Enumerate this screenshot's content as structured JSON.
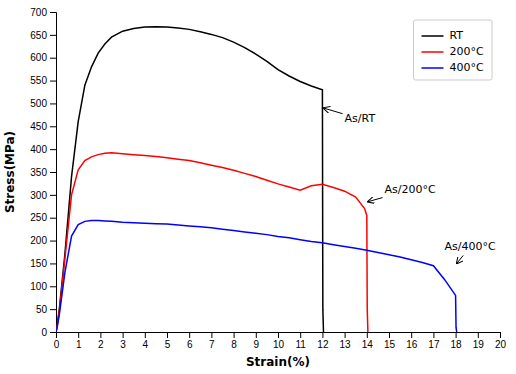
{
  "chart_data": {
    "type": "line",
    "xlabel": "Strain(%)",
    "ylabel": "Stress(MPa)",
    "xlim": [
      0,
      20
    ],
    "ylim": [
      0,
      700
    ],
    "xticks": [
      0,
      1,
      2,
      3,
      4,
      5,
      6,
      7,
      8,
      9,
      10,
      11,
      12,
      13,
      14,
      15,
      16,
      17,
      18,
      19,
      20
    ],
    "yticks": [
      0,
      50,
      100,
      150,
      200,
      250,
      300,
      350,
      400,
      450,
      500,
      550,
      600,
      650,
      700
    ],
    "legend": "upper right",
    "series": [
      {
        "name": "RT",
        "color": "black",
        "x": [
          0,
          0.05,
          0.15,
          0.4,
          0.7,
          1.0,
          1.3,
          1.6,
          1.9,
          2.2,
          2.5,
          3.0,
          3.5,
          4.0,
          4.5,
          5.0,
          5.5,
          6.0,
          6.5,
          7.0,
          7.5,
          8.0,
          8.5,
          9.0,
          9.5,
          10.0,
          10.5,
          11.0,
          11.5,
          12.0,
          12.02,
          12.05
        ],
        "values": [
          0,
          15,
          50,
          170,
          340,
          460,
          540,
          580,
          610,
          630,
          645,
          658,
          664,
          667,
          668,
          667,
          665,
          662,
          657,
          651,
          644,
          634,
          622,
          608,
          592,
          574,
          560,
          548,
          538,
          530,
          50,
          0
        ]
      },
      {
        "name": "200°C",
        "color": "red",
        "x": [
          0,
          0.05,
          0.15,
          0.4,
          0.7,
          1.0,
          1.3,
          1.6,
          1.9,
          2.2,
          2.5,
          3.0,
          3.5,
          4.0,
          4.5,
          5.0,
          5.5,
          6.0,
          6.5,
          7.0,
          7.5,
          8.0,
          8.5,
          9.0,
          9.5,
          10.0,
          10.5,
          11.0,
          11.5,
          12.0,
          12.5,
          13.0,
          13.5,
          13.9,
          14.0,
          14.02,
          14.05
        ],
        "values": [
          0,
          12,
          45,
          160,
          300,
          355,
          375,
          383,
          388,
          391,
          392,
          390,
          388,
          386,
          384,
          381,
          378,
          375,
          370,
          365,
          360,
          354,
          347,
          340,
          332,
          324,
          317,
          310,
          320,
          323,
          316,
          308,
          295,
          270,
          255,
          50,
          0
        ]
      },
      {
        "name": "400°C",
        "color": "blue",
        "x": [
          0,
          0.05,
          0.15,
          0.4,
          0.7,
          1.0,
          1.3,
          1.6,
          1.9,
          2.2,
          2.5,
          3.0,
          3.5,
          4.0,
          4.5,
          5.0,
          5.5,
          6.0,
          6.5,
          7.0,
          7.5,
          8.0,
          8.5,
          9.0,
          9.5,
          10.0,
          10.5,
          11.0,
          11.5,
          12.0,
          12.5,
          13.0,
          13.5,
          14.0,
          14.5,
          15.0,
          15.5,
          16.0,
          16.5,
          17.0,
          17.5,
          18.0,
          18.02,
          18.05
        ],
        "values": [
          0,
          10,
          38,
          130,
          210,
          235,
          242,
          244,
          244,
          243,
          242,
          240,
          239,
          238,
          237,
          236,
          234,
          232,
          230,
          228,
          225,
          222,
          219,
          216,
          213,
          209,
          206,
          202,
          198,
          195,
          191,
          187,
          183,
          179,
          174,
          169,
          164,
          158,
          152,
          145,
          115,
          80,
          10,
          0
        ]
      }
    ],
    "annotations": [
      {
        "text": "As/RT",
        "xy": [
          12.05,
          490
        ],
        "xytext": [
          13.0,
          465
        ]
      },
      {
        "text": "As/200°C",
        "xy": [
          14.05,
          285
        ],
        "xytext": [
          14.8,
          310
        ]
      },
      {
        "text": "As/400°C",
        "xy": [
          18.05,
          150
        ],
        "xytext": [
          17.5,
          185
        ]
      }
    ]
  }
}
